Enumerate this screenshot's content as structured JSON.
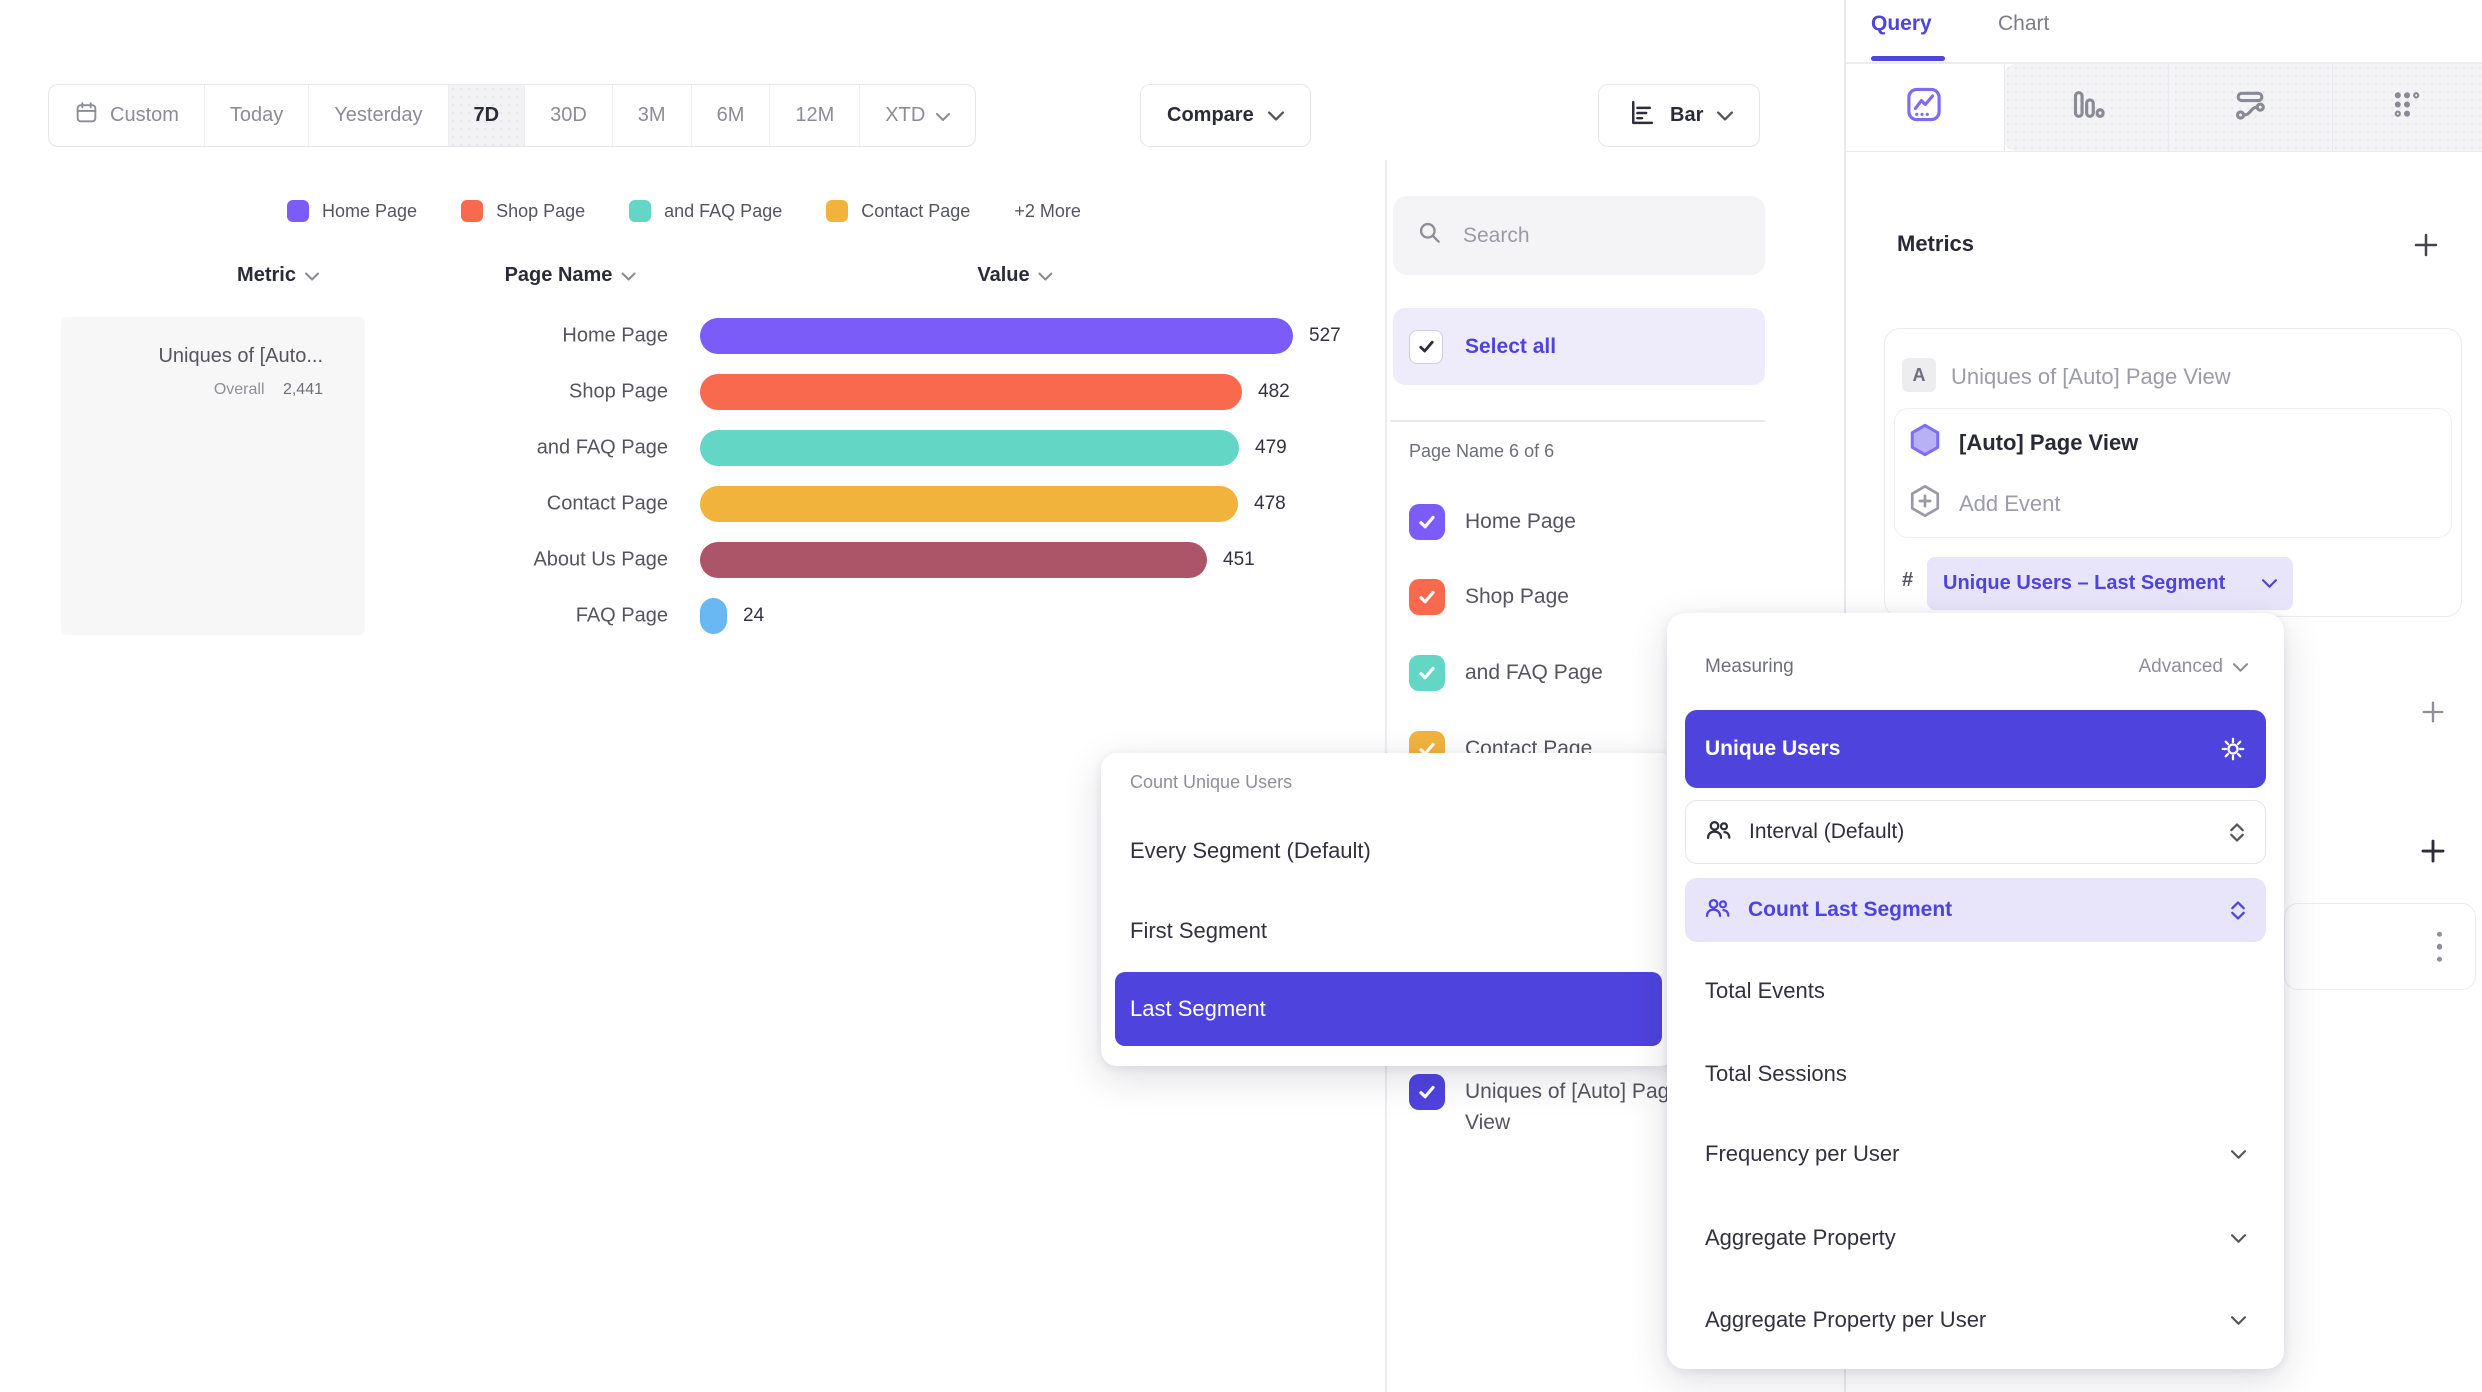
{
  "accent": "#4f43dd",
  "toolbar": {
    "date_ranges": [
      "Custom",
      "Today",
      "Yesterday",
      "7D",
      "30D",
      "3M",
      "6M",
      "12M",
      "XTD"
    ],
    "active_range": "7D",
    "compare": "Compare",
    "chart_type": "Bar"
  },
  "legend": {
    "items": [
      {
        "label": "Home Page",
        "color": "#7b5cf9"
      },
      {
        "label": "Shop Page",
        "color": "#f8694d"
      },
      {
        "label": "and FAQ Page",
        "color": "#63d6c5"
      },
      {
        "label": "Contact Page",
        "color": "#f2b33d"
      }
    ],
    "more": "+2 More"
  },
  "chart_data": {
    "type": "bar",
    "orientation": "horizontal",
    "title": "Uniques of [Auto] Page View",
    "categories": [
      "Home Page",
      "Shop Page",
      "and FAQ Page",
      "Contact Page",
      "About Us Page",
      "FAQ Page"
    ],
    "values": [
      527,
      482,
      479,
      478,
      451,
      24
    ],
    "colors": [
      "#7b5cf9",
      "#f8694d",
      "#63d6c5",
      "#f2b33d",
      "#ad5568",
      "#69b8f3"
    ],
    "overall": 2441,
    "xlim": [
      0,
      527
    ],
    "value_labels": true,
    "legend_position": "top"
  },
  "table": {
    "metric_header": "Metric",
    "page_header": "Page Name",
    "value_header": "Value",
    "metric_title": "Uniques of [Auto...",
    "overall_label": "Overall",
    "overall_value": "2,441"
  },
  "filter_panel": {
    "search_placeholder": "Search",
    "select_all": "Select all",
    "group_label": "Page Name 6 of 6",
    "items": [
      {
        "label": "Home Page",
        "color": "#7b5cf9",
        "checked": true
      },
      {
        "label": "Shop Page",
        "color": "#f8694d",
        "checked": true
      },
      {
        "label": "and FAQ Page",
        "color": "#63d6c5",
        "checked": true
      },
      {
        "label": "Contact Page",
        "color": "#f2b33d",
        "checked": true
      }
    ],
    "extra_item": {
      "label": "Uniques of [Auto] Page View",
      "color": "#4f43dd",
      "checked": true
    }
  },
  "sidebar": {
    "tabs": [
      {
        "label": "Query",
        "active": true
      },
      {
        "label": "Chart",
        "active": false
      }
    ],
    "chart_type_tabs": [
      "insights",
      "bar-chart",
      "flows",
      "retention"
    ],
    "metrics_title": "Metrics",
    "metric_card": {
      "badge": "A",
      "title": "Uniques of [Auto] Page View",
      "event_name": "[Auto] Page View",
      "add_event": "Add Event",
      "hash": "#",
      "measure_pill": "Unique Users – Last Segment"
    }
  },
  "measuring_popover": {
    "title": "Measuring",
    "advanced": "Advanced",
    "selected": "Unique Users",
    "interval": "Interval (Default)",
    "count_last": "Count Last Segment",
    "items": [
      {
        "label": "Total Events",
        "chevron": false
      },
      {
        "label": "Total Sessions",
        "chevron": false
      },
      {
        "label": "Frequency per User",
        "chevron": true
      },
      {
        "label": "Aggregate Property",
        "chevron": true
      },
      {
        "label": "Aggregate Property per User",
        "chevron": true
      }
    ]
  },
  "segment_popover": {
    "title": "Count Unique Users",
    "items": [
      {
        "label": "Every Segment (Default)",
        "selected": false
      },
      {
        "label": "First Segment",
        "selected": false
      },
      {
        "label": "Last Segment",
        "selected": true
      }
    ]
  }
}
